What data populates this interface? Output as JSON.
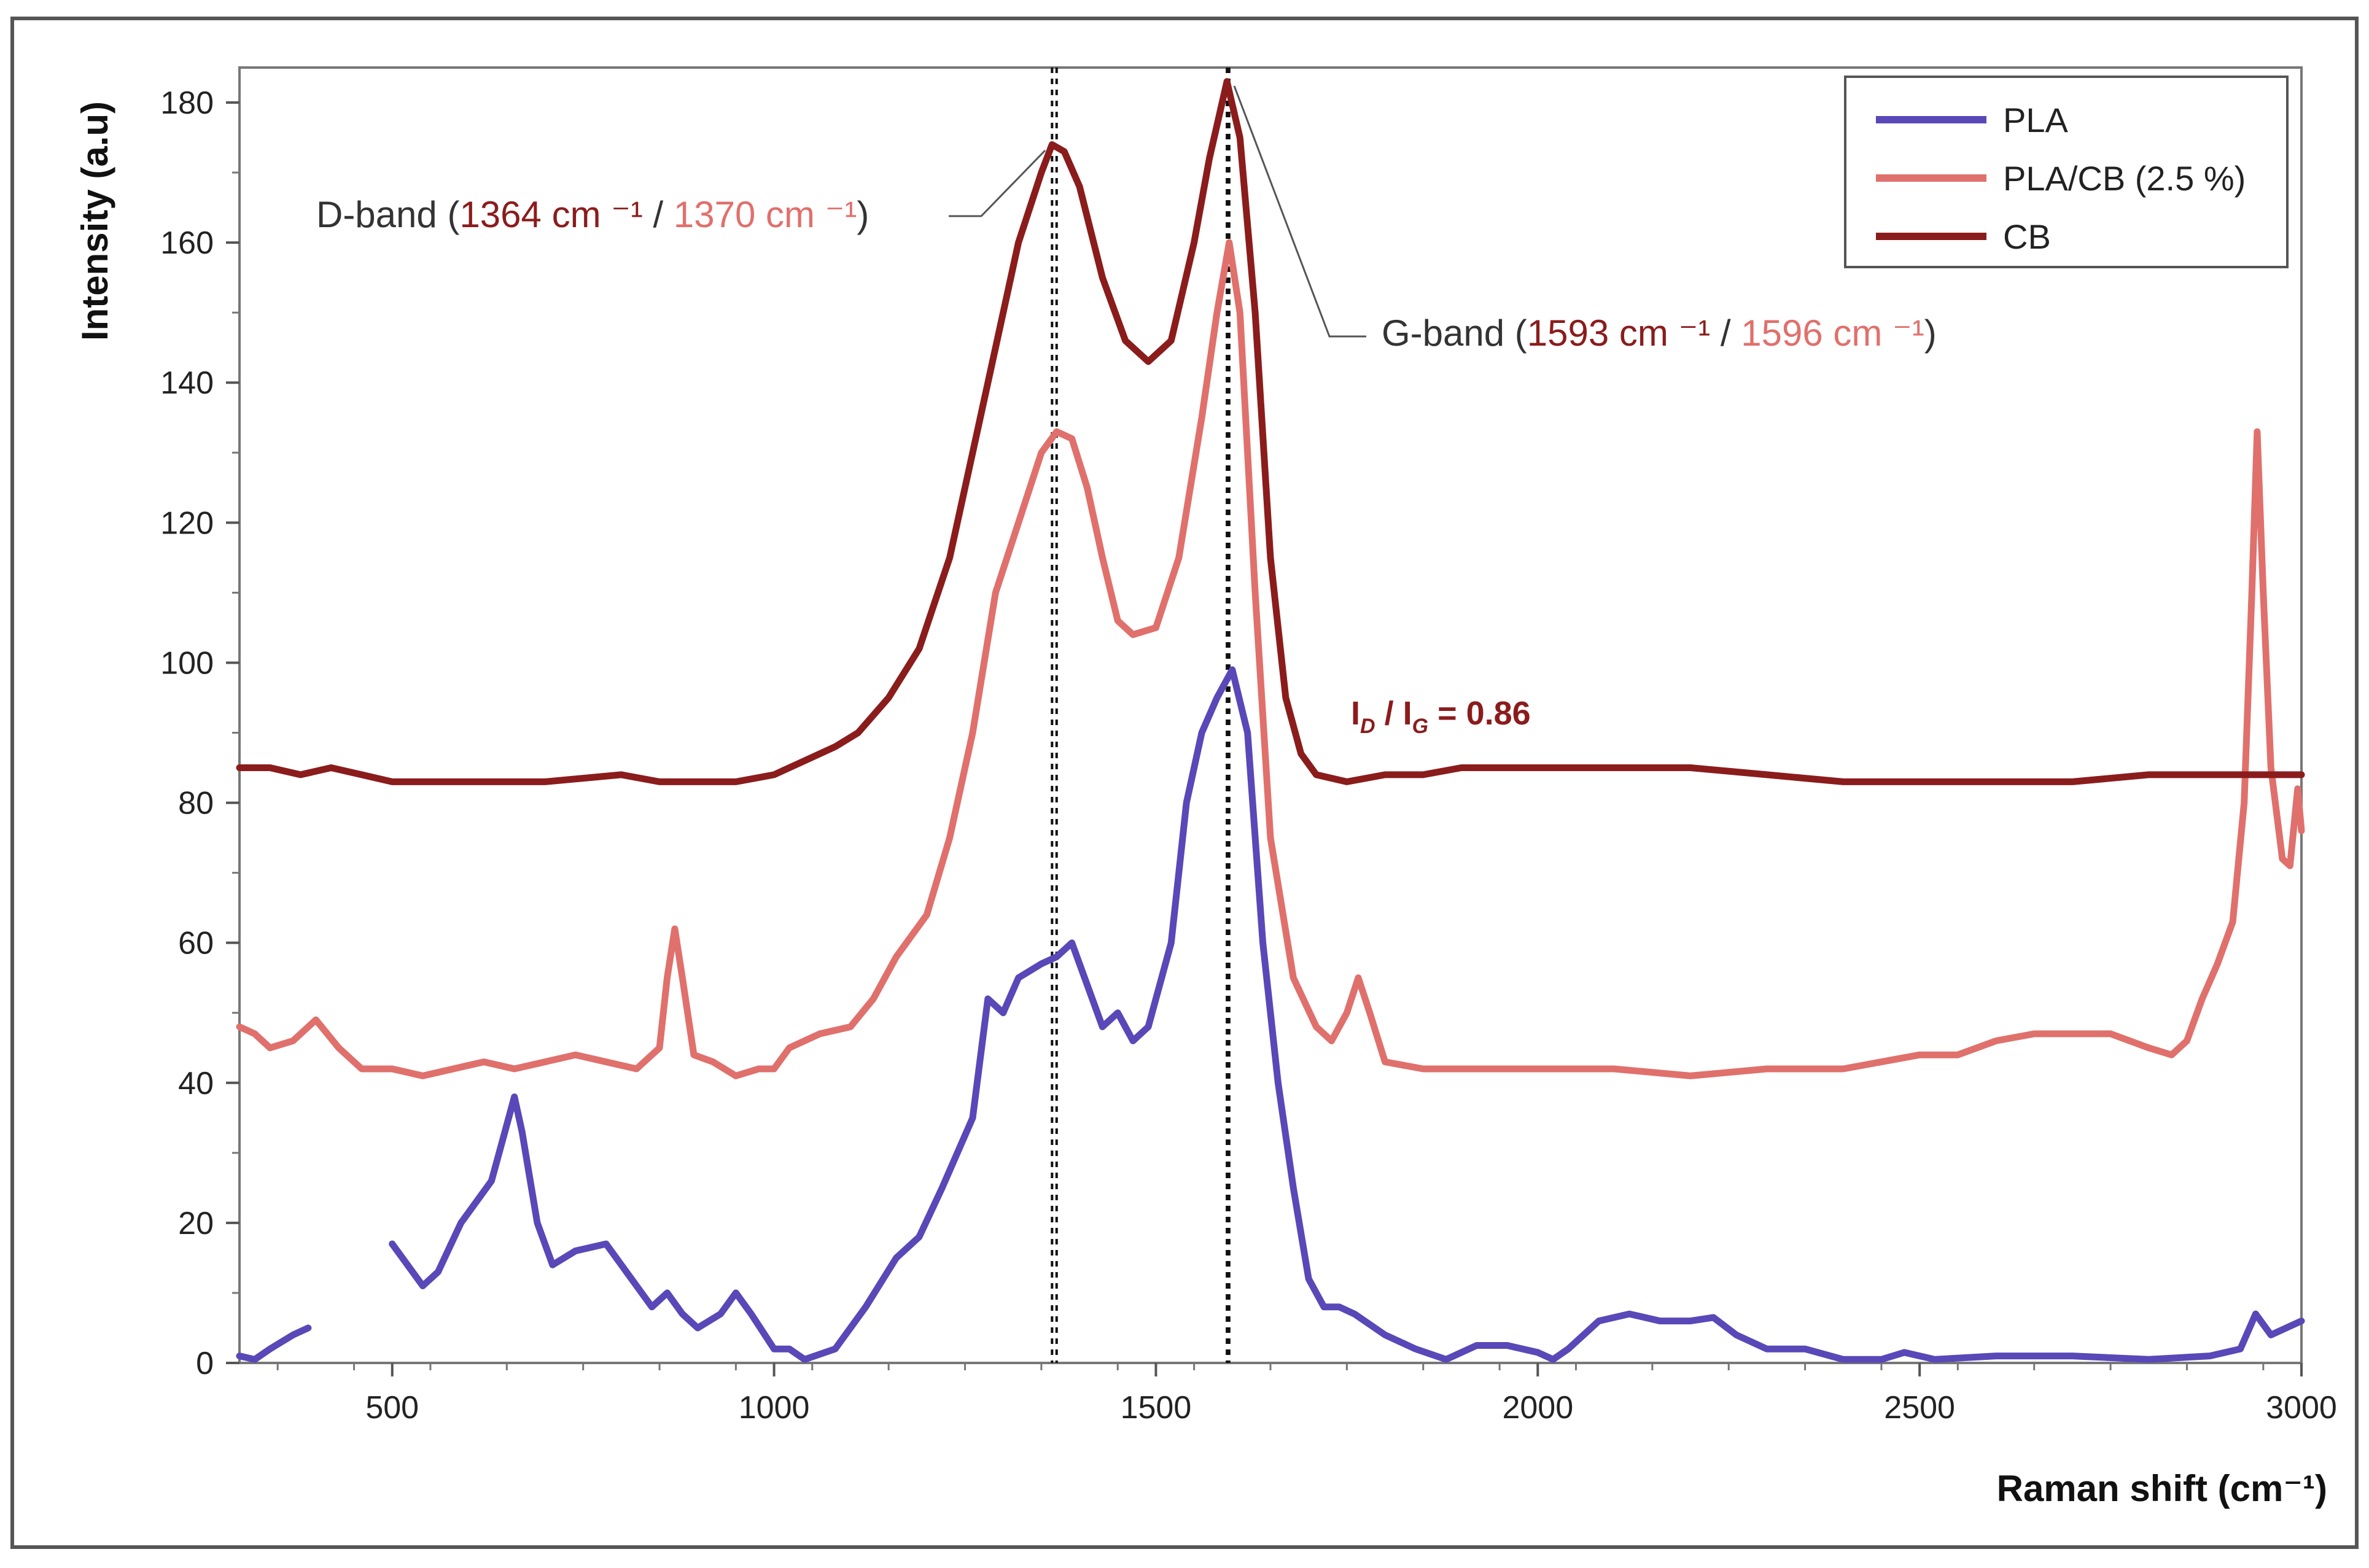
{
  "chart_data": {
    "type": "line",
    "title": "",
    "xlabel": "Raman shift (cm⁻¹)",
    "ylabel": "Intensity (a.u)",
    "xlim": [
      300,
      3000
    ],
    "ylim": [
      0,
      185
    ],
    "x_ticks": [
      500,
      1000,
      1500,
      2000,
      2500,
      3000
    ],
    "y_ticks": [
      0,
      20,
      40,
      60,
      80,
      100,
      120,
      140,
      160,
      180
    ],
    "grid": false,
    "legend_position": "top-right",
    "series": [
      {
        "name": "PLA",
        "color": "#5848b8",
        "points": [
          [
            300,
            1
          ],
          [
            320,
            0.5
          ],
          [
            340,
            2
          ],
          [
            370,
            4
          ],
          [
            390,
            5
          ],
          [
            500,
            17
          ],
          [
            540,
            11
          ],
          [
            560,
            13
          ],
          [
            590,
            20
          ],
          [
            630,
            26
          ],
          [
            650,
            34
          ],
          [
            660,
            38
          ],
          [
            670,
            33
          ],
          [
            690,
            20
          ],
          [
            710,
            14
          ],
          [
            740,
            16
          ],
          [
            780,
            17
          ],
          [
            800,
            14
          ],
          [
            840,
            8
          ],
          [
            860,
            10
          ],
          [
            880,
            7
          ],
          [
            900,
            5
          ],
          [
            930,
            7
          ],
          [
            950,
            10
          ],
          [
            970,
            7
          ],
          [
            1000,
            2
          ],
          [
            1020,
            2
          ],
          [
            1040,
            0.5
          ],
          [
            1080,
            2
          ],
          [
            1120,
            8
          ],
          [
            1160,
            15
          ],
          [
            1190,
            18
          ],
          [
            1220,
            25
          ],
          [
            1260,
            35
          ],
          [
            1280,
            52
          ],
          [
            1300,
            50
          ],
          [
            1320,
            55
          ],
          [
            1350,
            57
          ],
          [
            1370,
            58
          ],
          [
            1390,
            60
          ],
          [
            1410,
            54
          ],
          [
            1430,
            48
          ],
          [
            1450,
            50
          ],
          [
            1470,
            46
          ],
          [
            1490,
            48
          ],
          [
            1520,
            60
          ],
          [
            1540,
            80
          ],
          [
            1560,
            90
          ],
          [
            1580,
            95
          ],
          [
            1600,
            99
          ],
          [
            1620,
            90
          ],
          [
            1640,
            60
          ],
          [
            1660,
            40
          ],
          [
            1680,
            25
          ],
          [
            1700,
            12
          ],
          [
            1720,
            8
          ],
          [
            1740,
            8
          ],
          [
            1760,
            7
          ],
          [
            1800,
            4
          ],
          [
            1840,
            2
          ],
          [
            1880,
            0.5
          ],
          [
            1920,
            2.5
          ],
          [
            1960,
            2.5
          ],
          [
            2000,
            1.5
          ],
          [
            2020,
            0.5
          ],
          [
            2040,
            2
          ],
          [
            2080,
            6
          ],
          [
            2120,
            7
          ],
          [
            2160,
            6
          ],
          [
            2200,
            6
          ],
          [
            2230,
            6.5
          ],
          [
            2260,
            4
          ],
          [
            2300,
            2
          ],
          [
            2350,
            2
          ],
          [
            2400,
            0.5
          ],
          [
            2450,
            0.5
          ],
          [
            2480,
            1.5
          ],
          [
            2520,
            0.5
          ],
          [
            2600,
            1
          ],
          [
            2700,
            1
          ],
          [
            2800,
            0.5
          ],
          [
            2880,
            1
          ],
          [
            2920,
            2
          ],
          [
            2940,
            7
          ],
          [
            2960,
            4
          ],
          [
            2980,
            5
          ],
          [
            3000,
            6
          ]
        ],
        "gaps_between_x": [
          [
            390,
            495
          ]
        ]
      },
      {
        "name": "PLA/CB (2.5 %)",
        "color": "#e0706c",
        "points": [
          [
            300,
            48
          ],
          [
            320,
            47
          ],
          [
            340,
            45
          ],
          [
            370,
            46
          ],
          [
            400,
            49
          ],
          [
            430,
            45
          ],
          [
            460,
            42
          ],
          [
            500,
            42
          ],
          [
            540,
            41
          ],
          [
            580,
            42
          ],
          [
            620,
            43
          ],
          [
            660,
            42
          ],
          [
            700,
            43
          ],
          [
            740,
            44
          ],
          [
            780,
            43
          ],
          [
            820,
            42
          ],
          [
            850,
            45
          ],
          [
            860,
            55
          ],
          [
            870,
            62
          ],
          [
            880,
            55
          ],
          [
            895,
            44
          ],
          [
            920,
            43
          ],
          [
            950,
            41
          ],
          [
            980,
            42
          ],
          [
            1000,
            42
          ],
          [
            1020,
            45
          ],
          [
            1060,
            47
          ],
          [
            1100,
            48
          ],
          [
            1130,
            52
          ],
          [
            1160,
            58
          ],
          [
            1200,
            64
          ],
          [
            1230,
            75
          ],
          [
            1260,
            90
          ],
          [
            1290,
            110
          ],
          [
            1320,
            120
          ],
          [
            1350,
            130
          ],
          [
            1370,
            133
          ],
          [
            1390,
            132
          ],
          [
            1410,
            125
          ],
          [
            1430,
            115
          ],
          [
            1450,
            106
          ],
          [
            1470,
            104
          ],
          [
            1500,
            105
          ],
          [
            1530,
            115
          ],
          [
            1560,
            135
          ],
          [
            1580,
            150
          ],
          [
            1596,
            160
          ],
          [
            1610,
            150
          ],
          [
            1630,
            110
          ],
          [
            1650,
            75
          ],
          [
            1680,
            55
          ],
          [
            1710,
            48
          ],
          [
            1730,
            46
          ],
          [
            1750,
            50
          ],
          [
            1765,
            55
          ],
          [
            1780,
            50
          ],
          [
            1800,
            43
          ],
          [
            1850,
            42
          ],
          [
            1900,
            42
          ],
          [
            2000,
            42
          ],
          [
            2100,
            42
          ],
          [
            2200,
            41
          ],
          [
            2300,
            42
          ],
          [
            2400,
            42
          ],
          [
            2500,
            44
          ],
          [
            2550,
            44
          ],
          [
            2600,
            46
          ],
          [
            2650,
            47
          ],
          [
            2700,
            47
          ],
          [
            2750,
            47
          ],
          [
            2800,
            45
          ],
          [
            2830,
            44
          ],
          [
            2850,
            46
          ],
          [
            2870,
            52
          ],
          [
            2890,
            57
          ],
          [
            2910,
            63
          ],
          [
            2925,
            80
          ],
          [
            2935,
            110
          ],
          [
            2942,
            133
          ],
          [
            2950,
            110
          ],
          [
            2960,
            85
          ],
          [
            2975,
            72
          ],
          [
            2985,
            71
          ],
          [
            2995,
            82
          ],
          [
            3000,
            76
          ]
        ]
      },
      {
        "name": "CB",
        "color": "#8b1c1c",
        "points": [
          [
            300,
            85
          ],
          [
            340,
            85
          ],
          [
            380,
            84
          ],
          [
            420,
            85
          ],
          [
            460,
            84
          ],
          [
            500,
            83
          ],
          [
            600,
            83
          ],
          [
            700,
            83
          ],
          [
            800,
            84
          ],
          [
            850,
            83
          ],
          [
            900,
            83
          ],
          [
            950,
            83
          ],
          [
            1000,
            84
          ],
          [
            1040,
            86
          ],
          [
            1080,
            88
          ],
          [
            1110,
            90
          ],
          [
            1150,
            95
          ],
          [
            1190,
            102
          ],
          [
            1230,
            115
          ],
          [
            1260,
            130
          ],
          [
            1290,
            145
          ],
          [
            1320,
            160
          ],
          [
            1350,
            170
          ],
          [
            1364,
            174
          ],
          [
            1380,
            173
          ],
          [
            1400,
            168
          ],
          [
            1430,
            155
          ],
          [
            1460,
            146
          ],
          [
            1490,
            143
          ],
          [
            1520,
            146
          ],
          [
            1550,
            160
          ],
          [
            1570,
            172
          ],
          [
            1593,
            183
          ],
          [
            1610,
            175
          ],
          [
            1630,
            150
          ],
          [
            1650,
            115
          ],
          [
            1670,
            95
          ],
          [
            1690,
            87
          ],
          [
            1710,
            84
          ],
          [
            1750,
            83
          ],
          [
            1800,
            84
          ],
          [
            1850,
            84
          ],
          [
            1900,
            85
          ],
          [
            1950,
            85
          ],
          [
            2000,
            85
          ],
          [
            2100,
            85
          ],
          [
            2200,
            85
          ],
          [
            2300,
            84
          ],
          [
            2400,
            83
          ],
          [
            2500,
            83
          ],
          [
            2600,
            83
          ],
          [
            2700,
            83
          ],
          [
            2800,
            84
          ],
          [
            2850,
            84
          ],
          [
            2900,
            84
          ],
          [
            2950,
            84
          ],
          [
            3000,
            84
          ]
        ]
      }
    ],
    "reference_lines_x": [
      1364,
      1370,
      1593,
      1596
    ],
    "annotations": {
      "d_band": {
        "prefix": "D-band (",
        "value_cb": "1364 cm ⁻¹",
        "separator": " / ",
        "value_placb": "1370 cm ⁻¹",
        "suffix": ")"
      },
      "g_band": {
        "prefix": "G-band (",
        "value_cb": "1593 cm ⁻¹",
        "separator": " / ",
        "value_placb": "1596 cm ⁻¹",
        "suffix": ")"
      },
      "ratio": {
        "i_letter": "I",
        "d_sub": "D",
        "slash": " / ",
        "g_sub": "G",
        "value": " = 0.86"
      }
    },
    "colors": {
      "cb": "#8b1c1c",
      "placb": "#e0706c",
      "pla": "#5848b8"
    }
  }
}
